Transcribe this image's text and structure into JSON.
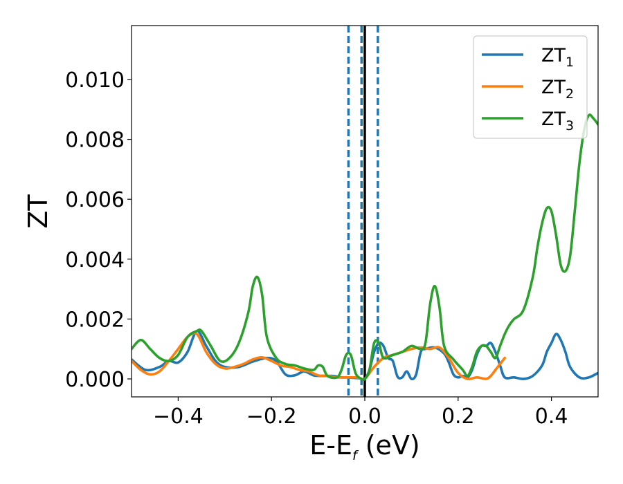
{
  "chart_data": {
    "type": "line",
    "xlabel": "E-E",
    "xlabel_sub": "f",
    "xlabel_unit": " (eV)",
    "ylabel": "ZT",
    "xlim": [
      -0.5,
      0.5
    ],
    "ylim": [
      -0.0006,
      0.0118
    ],
    "xticks": [
      -0.4,
      -0.2,
      0.0,
      0.2,
      0.4
    ],
    "xtick_labels": [
      "−0.4",
      "−0.2",
      "0.0",
      "0.2",
      "0.4"
    ],
    "yticks": [
      0.0,
      0.002,
      0.004,
      0.006,
      0.008,
      0.01
    ],
    "ytick_labels": [
      "0.000",
      "0.002",
      "0.004",
      "0.006",
      "0.008",
      "0.010"
    ],
    "grid": false,
    "legend_position": "top-right",
    "vlines": [
      {
        "x": 0.0,
        "style": "solid",
        "color": "#000000"
      },
      {
        "x": -0.035,
        "style": "dashed",
        "color": "#1f77b4"
      },
      {
        "x": -0.007,
        "style": "dashed",
        "color": "#1f77b4"
      },
      {
        "x": 0.028,
        "style": "dashed",
        "color": "#1f77b4"
      }
    ],
    "series": [
      {
        "name": "ZT",
        "sub": "1",
        "color": "#1f77b4",
        "x": [
          -0.5,
          -0.47,
          -0.44,
          -0.42,
          -0.4,
          -0.38,
          -0.36,
          -0.34,
          -0.32,
          -0.3,
          -0.27,
          -0.24,
          -0.21,
          -0.19,
          -0.17,
          -0.15,
          -0.13,
          -0.11,
          -0.09,
          -0.07,
          -0.05,
          -0.04,
          -0.02,
          -0.01,
          0.0,
          0.01,
          0.02,
          0.03,
          0.04,
          0.05,
          0.06,
          0.07,
          0.08,
          0.09,
          0.1,
          0.11,
          0.12,
          0.13,
          0.15,
          0.17,
          0.18,
          0.19,
          0.2,
          0.21,
          0.22,
          0.23,
          0.24,
          0.25,
          0.26,
          0.27,
          0.28,
          0.29,
          0.3,
          0.32,
          0.34,
          0.36,
          0.38,
          0.39,
          0.4,
          0.41,
          0.42,
          0.43,
          0.44,
          0.46,
          0.48,
          0.5
        ],
        "y": [
          0.00065,
          0.0003,
          0.0004,
          0.0006,
          0.00055,
          0.0009,
          0.0016,
          0.0011,
          0.0006,
          0.0004,
          0.0004,
          0.00058,
          0.0007,
          0.0006,
          0.00015,
          0.00012,
          0.00025,
          0.00012,
          0.0001,
          0.0001,
          5e-05,
          5e-05,
          3e-05,
          2e-05,
          0.0,
          0.0003,
          0.0009,
          0.0012,
          0.0011,
          0.0007,
          0.0006,
          8e-05,
          5e-05,
          0.00025,
          0.0,
          0.00015,
          0.0009,
          0.001,
          0.00105,
          0.00085,
          0.00055,
          0.00015,
          5e-05,
          0.0001,
          5e-05,
          0.0003,
          0.0008,
          0.0011,
          0.0011,
          0.0012,
          0.0009,
          0.00045,
          5e-05,
          5e-05,
          0.0,
          0.0001,
          0.00045,
          0.0009,
          0.0012,
          0.0015,
          0.0013,
          0.0009,
          0.0004,
          5e-05,
          5e-05,
          0.0002
        ]
      },
      {
        "name": "ZT",
        "sub": "2",
        "color": "#ff7f0e",
        "x": [
          -0.5,
          -0.48,
          -0.46,
          -0.44,
          -0.42,
          -0.4,
          -0.38,
          -0.36,
          -0.34,
          -0.32,
          -0.3,
          -0.28,
          -0.26,
          -0.24,
          -0.22,
          -0.2,
          -0.18,
          -0.16,
          -0.14,
          -0.12,
          -0.1,
          -0.08,
          -0.06,
          -0.04,
          -0.02,
          -0.01,
          0.0,
          0.02,
          0.04,
          0.06,
          0.08,
          0.1,
          0.12,
          0.14,
          0.16,
          0.18,
          0.2,
          0.22,
          0.24,
          0.26,
          0.27,
          0.28,
          0.29,
          0.3
        ],
        "y": [
          0.0006,
          0.0003,
          0.00015,
          0.00025,
          0.0006,
          0.001,
          0.0014,
          0.0015,
          0.0009,
          0.0005,
          0.00035,
          0.0004,
          0.0005,
          0.00065,
          0.00072,
          0.0006,
          0.00045,
          0.0004,
          0.0003,
          0.00025,
          0.00012,
          0.0001,
          5e-05,
          5e-05,
          5e-05,
          3e-05,
          0.0,
          0.0004,
          0.0007,
          0.0008,
          0.0009,
          0.001,
          0.00105,
          0.001,
          0.00105,
          0.0007,
          0.0002,
          0.0,
          5e-05,
          0.0,
          0.0001,
          0.0003,
          0.0005,
          0.0007
        ]
      },
      {
        "name": "ZT",
        "sub": "3",
        "color": "#2ca02c",
        "x": [
          -0.5,
          -0.48,
          -0.46,
          -0.44,
          -0.42,
          -0.4,
          -0.38,
          -0.36,
          -0.35,
          -0.33,
          -0.31,
          -0.29,
          -0.27,
          -0.25,
          -0.24,
          -0.23,
          -0.22,
          -0.21,
          -0.19,
          -0.17,
          -0.15,
          -0.13,
          -0.11,
          -0.1,
          -0.09,
          -0.08,
          -0.06,
          -0.05,
          -0.04,
          -0.03,
          -0.02,
          -0.01,
          0.0,
          0.01,
          0.02,
          0.03,
          0.04,
          0.06,
          0.08,
          0.1,
          0.12,
          0.13,
          0.14,
          0.15,
          0.16,
          0.17,
          0.19,
          0.21,
          0.22,
          0.23,
          0.24,
          0.25,
          0.26,
          0.27,
          0.28,
          0.29,
          0.3,
          0.31,
          0.32,
          0.34,
          0.36,
          0.37,
          0.38,
          0.39,
          0.4,
          0.41,
          0.42,
          0.43,
          0.44,
          0.45,
          0.46,
          0.47,
          0.48,
          0.49,
          0.5
        ],
        "y": [
          0.001,
          0.0013,
          0.001,
          0.0007,
          0.0006,
          0.0008,
          0.0014,
          0.0016,
          0.0016,
          0.0011,
          0.0006,
          0.0007,
          0.0012,
          0.0022,
          0.0031,
          0.0034,
          0.0028,
          0.0014,
          0.0007,
          0.0005,
          0.00045,
          0.00035,
          0.0003,
          0.00045,
          0.0004,
          0.0001,
          5e-05,
          0.0003,
          0.0008,
          0.0008,
          0.0002,
          2e-05,
          0.0,
          0.0003,
          0.0012,
          0.0012,
          0.0007,
          0.0008,
          0.0009,
          0.0011,
          0.001,
          0.0012,
          0.0025,
          0.0031,
          0.0024,
          0.0011,
          0.00065,
          0.0003,
          0.0001,
          0.0004,
          0.0009,
          0.0011,
          0.0011,
          0.0009,
          0.0007,
          0.0011,
          0.0015,
          0.0018,
          0.002,
          0.0023,
          0.0034,
          0.0044,
          0.0052,
          0.0057,
          0.0056,
          0.0048,
          0.0038,
          0.0036,
          0.0041,
          0.0056,
          0.0072,
          0.0083,
          0.0088,
          0.0087,
          0.0085
        ]
      }
    ]
  }
}
